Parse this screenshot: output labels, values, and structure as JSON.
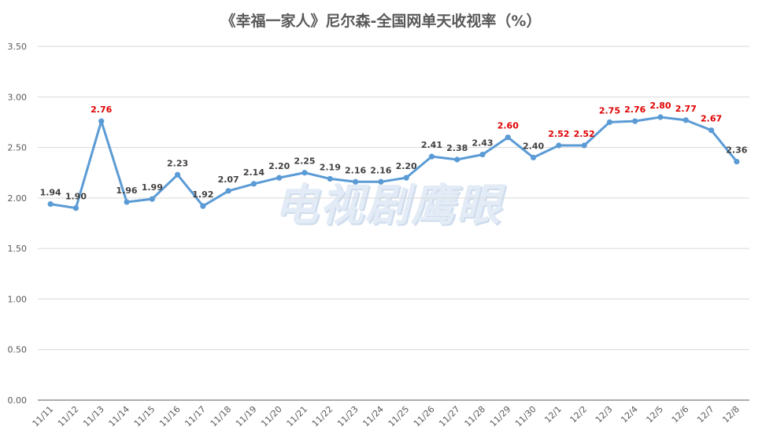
{
  "chart_data": {
    "type": "line",
    "title": "《幸福一家人》尼尔森-全国网单天收视率（%）",
    "watermark": "电视剧鹰眼",
    "categories": [
      "11/11",
      "11/12",
      "11/13",
      "11/14",
      "11/15",
      "11/16",
      "11/17",
      "11/18",
      "11/19",
      "11/20",
      "11/21",
      "11/22",
      "11/23",
      "11/24",
      "11/25",
      "11/26",
      "11/27",
      "11/28",
      "11/29",
      "11/30",
      "12/1",
      "12/2",
      "12/3",
      "12/4",
      "12/5",
      "12/6",
      "12/7",
      "12/8"
    ],
    "values": [
      1.94,
      1.9,
      2.76,
      1.96,
      1.99,
      2.23,
      1.92,
      2.07,
      2.14,
      2.2,
      2.25,
      2.19,
      2.16,
      2.16,
      2.2,
      2.41,
      2.38,
      2.43,
      2.6,
      2.4,
      2.52,
      2.52,
      2.75,
      2.76,
      2.8,
      2.77,
      2.67,
      2.36
    ],
    "value_labels": [
      "1.94",
      "1.90",
      "2.76",
      "1.96",
      "1.99",
      "2.23",
      "1.92",
      "2.07",
      "2.14",
      "2.20",
      "2.25",
      "2.19",
      "2.16",
      "2.16",
      "2.20",
      "2.41",
      "2.38",
      "2.43",
      "2.60",
      "2.40",
      "2.52",
      "2.52",
      "2.75",
      "2.76",
      "2.80",
      "2.77",
      "2.67",
      "2.36"
    ],
    "highlight_threshold": 2.5,
    "ylim": [
      0,
      3.5
    ],
    "yticks": [
      "0.00",
      "0.50",
      "1.00",
      "1.50",
      "2.00",
      "2.50",
      "3.00",
      "3.50"
    ],
    "grid": true,
    "colors": {
      "line": "#5b9bd5",
      "label": "#404040",
      "highlight": "#e00000",
      "grid": "#d9d9d9",
      "axis": "#595959"
    }
  }
}
